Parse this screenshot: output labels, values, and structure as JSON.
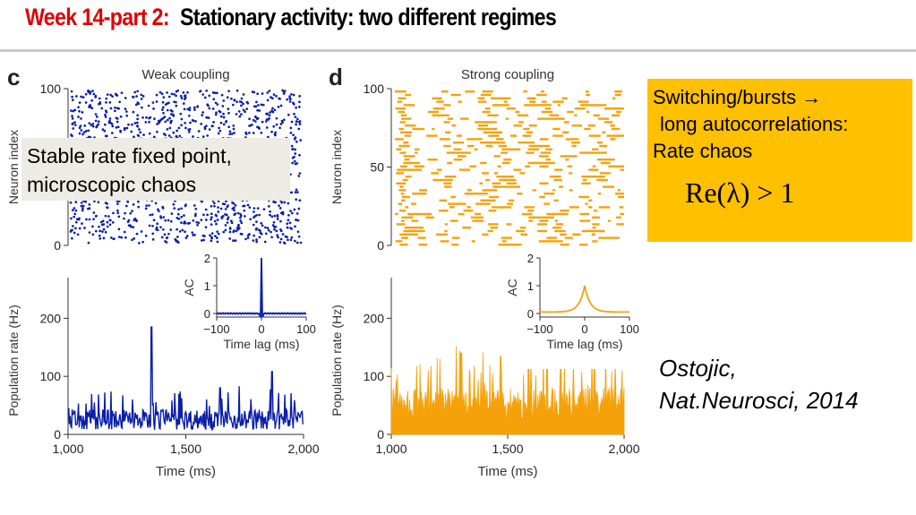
{
  "title": {
    "week": "Week 14-part 2:",
    "subtitle": "Stationary activity: two different regimes"
  },
  "panels": {
    "c": {
      "letter": "c",
      "raster_title": "Weak coupling",
      "raster_ylabel": "Neuron index",
      "raster_yticks": [
        "0",
        "100"
      ],
      "rate_ylabel": "Population rate (Hz)",
      "rate_yticks": [
        "0",
        "100",
        "200"
      ],
      "xlabel": "Time (ms)",
      "xticks": [
        "1,000",
        "1,500",
        "2,000"
      ],
      "inset_ylabel": "AC",
      "inset_yticks": [
        "0",
        "1",
        "2"
      ],
      "inset_xticks": [
        "−100",
        "0",
        "100"
      ],
      "inset_xlabel": "Time lag (ms)",
      "color": "#0a1eaa"
    },
    "d": {
      "letter": "d",
      "raster_title": "Strong coupling",
      "raster_ylabel": "Neuron index",
      "raster_yticks": [
        "0",
        "50",
        "100"
      ],
      "rate_ylabel": "Population rate (Hz)",
      "rate_yticks": [
        "0",
        "100",
        "200"
      ],
      "xlabel": "Time (ms)",
      "xticks": [
        "1,000",
        "1,500",
        "2,000"
      ],
      "inset_ylabel": "AC",
      "inset_yticks": [
        "0",
        "1",
        "2"
      ],
      "inset_xticks": [
        "−100",
        "0",
        "100"
      ],
      "inset_xlabel": "Time lag (ms)",
      "color": "#f5a20a"
    }
  },
  "callout_left": {
    "line1": "Stable rate fixed point,",
    "line2": "microscopic chaos"
  },
  "callout_right": {
    "line1": "Switching/bursts →",
    "line2": "long autocorrelations:",
    "line3": "Rate chaos",
    "equation": "Re(λ) > 1"
  },
  "citation": {
    "line1": "Ostojic,",
    "line2": "Nat.Neurosci, 2014"
  },
  "chart_data": [
    {
      "type": "scatter",
      "panel": "c",
      "title": "Weak coupling",
      "xlabel": "",
      "ylabel": "Neuron index",
      "xlim": [
        1000,
        2000
      ],
      "ylim": [
        0,
        100
      ],
      "description": "spike raster, irregular dots"
    },
    {
      "type": "line",
      "panel": "c",
      "xlabel": "Time (ms)",
      "ylabel": "Population rate (Hz)",
      "xlim": [
        1000,
        2000
      ],
      "ylim": [
        0,
        270
      ],
      "peaks": [
        {
          "x": 1355,
          "y": 185
        },
        {
          "x": 1645,
          "y": 80
        },
        {
          "x": 1865,
          "y": 108
        }
      ]
    },
    {
      "type": "line",
      "panel": "c-inset",
      "xlabel": "Time lag (ms)",
      "ylabel": "AC",
      "xlim": [
        -100,
        100
      ],
      "ylim": [
        0,
        2
      ],
      "peak": 2
    },
    {
      "type": "scatter",
      "panel": "d",
      "title": "Strong coupling",
      "xlabel": "",
      "ylabel": "Neuron index",
      "xlim": [
        1000,
        2000
      ],
      "ylim": [
        0,
        100
      ],
      "description": "spike raster, bursts as horizontal dashes"
    },
    {
      "type": "area",
      "panel": "d",
      "xlabel": "Time (ms)",
      "ylabel": "Population rate (Hz)",
      "xlim": [
        1000,
        2000
      ],
      "ylim": [
        0,
        270
      ],
      "peaks": [
        {
          "x": 1300,
          "y": 140
        },
        {
          "x": 1470,
          "y": 135
        },
        {
          "x": 1670,
          "y": 140
        }
      ]
    },
    {
      "type": "line",
      "panel": "d-inset",
      "xlabel": "Time lag (ms)",
      "ylabel": "AC",
      "xlim": [
        -100,
        100
      ],
      "ylim": [
        0,
        2
      ],
      "peak": 1
    }
  ]
}
